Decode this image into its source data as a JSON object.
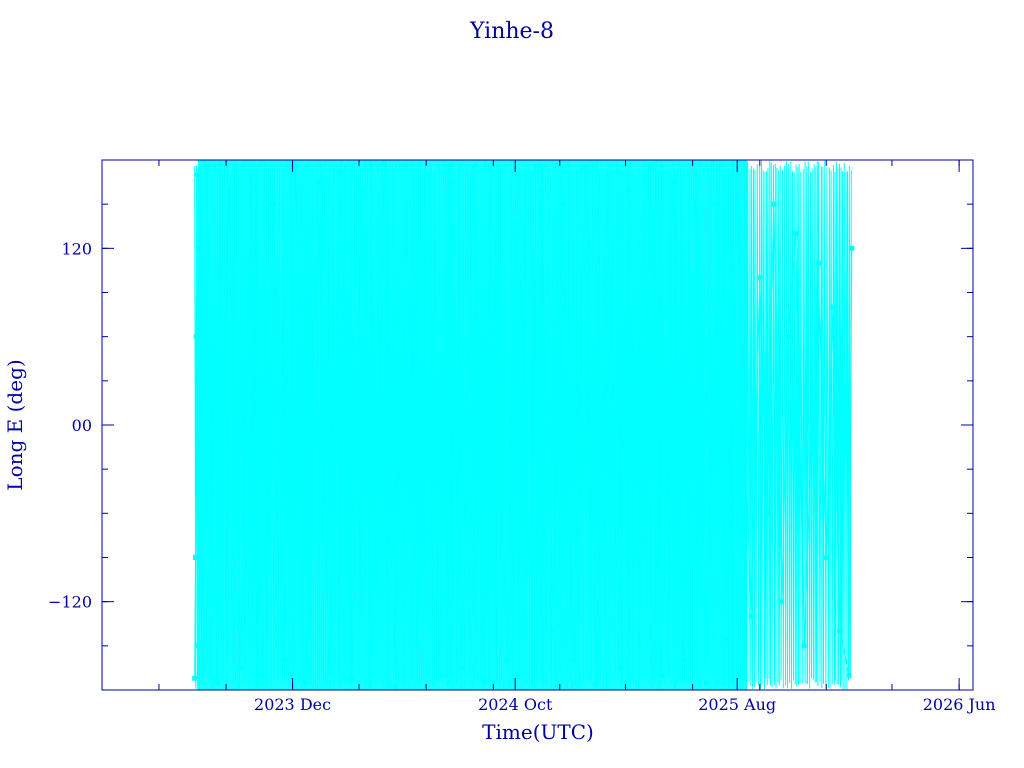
{
  "chart_data": {
    "type": "line",
    "title": "Yinhe-8",
    "xlabel": "Time(UTC)",
    "ylabel": "Long E (deg)",
    "x_ticks": [
      {
        "date": "2023-12-01",
        "label": "2023 Dec"
      },
      {
        "date": "2024-10-01",
        "label": "2024 Oct"
      },
      {
        "date": "2025-08-01",
        "label": "2025 Aug"
      },
      {
        "date": "2026-06-01",
        "label": "2026 Jun"
      }
    ],
    "y_ticks": [
      {
        "value": 120,
        "label": "120"
      },
      {
        "value": 0,
        "label": "00"
      },
      {
        "value": -120,
        "label": "−120"
      }
    ],
    "xlim": [
      "2023-03-15",
      "2026-06-20"
    ],
    "ylim": [
      -180,
      180
    ],
    "grid": false,
    "series": [
      {
        "color": "#00ffff",
        "marker": "square",
        "x": [
          "2023-07-20",
          "2023-07-21",
          "2023-07-22",
          "2023-07-23",
          "2023-07-24",
          "2023-07-25",
          "2023-07-27",
          "2023-08-05",
          "2023-08-20",
          "2023-09-05",
          "2023-09-20",
          "2023-10-05",
          "2023-10-20",
          "2023-11-05",
          "2023-11-20",
          "2023-12-05",
          "2023-12-20",
          "2024-01-05",
          "2024-01-20",
          "2024-02-05",
          "2024-02-20",
          "2024-03-05",
          "2024-03-20",
          "2024-04-05",
          "2024-04-20",
          "2024-05-05",
          "2024-05-20",
          "2024-06-05",
          "2024-06-20",
          "2024-07-05",
          "2024-07-20",
          "2024-08-05",
          "2024-08-20",
          "2024-09-05",
          "2024-09-20",
          "2024-10-05",
          "2024-10-20",
          "2024-11-05",
          "2024-11-20",
          "2024-12-05",
          "2024-12-20",
          "2025-01-05",
          "2025-01-20",
          "2025-02-05",
          "2025-02-20",
          "2025-03-05",
          "2025-03-20",
          "2025-04-05",
          "2025-04-20",
          "2025-05-05",
          "2025-05-20",
          "2025-06-05",
          "2025-06-20",
          "2025-07-05",
          "2025-07-20",
          "2025-08-01",
          "2025-08-10",
          "2025-08-20",
          "2025-09-01",
          "2025-09-10",
          "2025-09-20",
          "2025-10-01",
          "2025-10-10",
          "2025-10-20",
          "2025-11-01",
          "2025-11-10",
          "2025-11-20",
          "2025-12-01",
          "2025-12-10",
          "2025-12-20",
          "2026-01-01",
          "2026-01-05"
        ],
        "y": [
          -172,
          -90,
          60,
          170,
          -150,
          120,
          -110,
          175,
          -175,
          160,
          -165,
          170,
          -170,
          150,
          -160,
          175,
          -175,
          165,
          -168,
          172,
          -172,
          160,
          -155,
          178,
          -178,
          150,
          -150,
          170,
          -170,
          165,
          -165,
          175,
          -175,
          120,
          -160,
          170,
          -100,
          160,
          -140,
          150,
          -160,
          175,
          -175,
          170,
          -165,
          160,
          -150,
          175,
          -170,
          165,
          -160,
          170,
          -175,
          150,
          -145,
          170,
          20,
          -130,
          100,
          -60,
          150,
          -120,
          60,
          130,
          -150,
          -20,
          110,
          -90,
          80,
          -140,
          -170,
          120
        ]
      }
    ]
  }
}
